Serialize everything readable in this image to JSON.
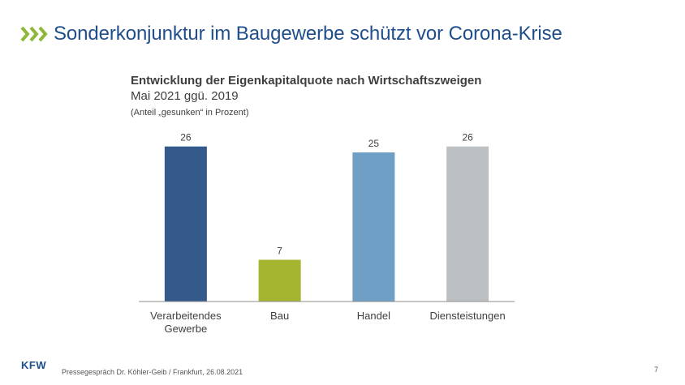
{
  "slide": {
    "title": "Sonderkonjunktur im Baugewerbe schützt vor Corona-Krise",
    "accent_color": "#8fb83a",
    "title_color": "#1f4e8c"
  },
  "chart_data": {
    "type": "bar",
    "title": "Entwicklung der Eigenkapitalquote nach Wirtschaftszweigen",
    "subtitle": "Mai 2021 ggü. 2019",
    "note": "(Anteil „gesunken“ in Prozent)",
    "categories": [
      [
        "Verarbeitendes",
        "Gewerbe"
      ],
      [
        "Bau"
      ],
      [
        "Handel"
      ],
      [
        "Diensteistungen"
      ]
    ],
    "values": [
      26,
      7,
      25,
      26
    ],
    "colors": [
      "#335a8a",
      "#a6b530",
      "#6f9fc5",
      "#bdc0c2"
    ],
    "ylim": [
      0,
      28
    ],
    "xlabel": "",
    "ylabel": ""
  },
  "footer": {
    "logo_text": "KFW",
    "text": "Pressegespräch Dr. Köhler-Geib / Frankfurt, 26.08.2021",
    "page": "7"
  }
}
